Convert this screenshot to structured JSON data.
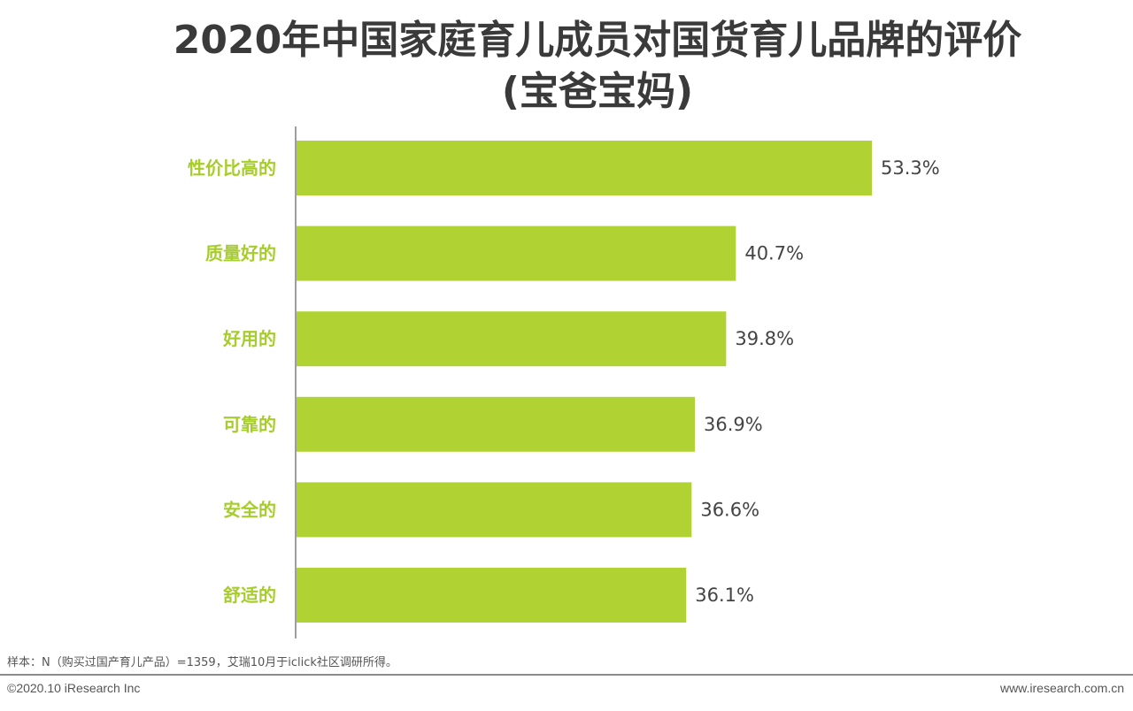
{
  "title": {
    "line1": "2020年中国家庭育儿成员对国货育儿品牌的评价",
    "line2": "(宝爸宝妈)"
  },
  "chart_data": {
    "type": "bar",
    "orientation": "horizontal",
    "categories": [
      "性价比高的",
      "质量好的",
      "好用的",
      "可靠的",
      "安全的",
      "舒适的"
    ],
    "values": [
      53.3,
      40.7,
      39.8,
      36.9,
      36.6,
      36.1
    ],
    "value_labels": [
      "53.3%",
      "40.7%",
      "39.8%",
      "36.9%",
      "36.6%",
      "36.1%"
    ],
    "unit": "%",
    "xlim": [
      0,
      100
    ],
    "grid": false,
    "legend": "none",
    "colors": {
      "bar": "#b0d232",
      "category_label": "#a6cd2b",
      "value_label": "#444444",
      "axis": "#7f7f7f"
    }
  },
  "footnote": "样本：N（购买过国产育儿产品）=1359，艾瑞10月于iclick社区调研所得。",
  "footer": {
    "copyright": "©2020.10 iResearch Inc",
    "website": "www.iresearch.com.cn"
  }
}
